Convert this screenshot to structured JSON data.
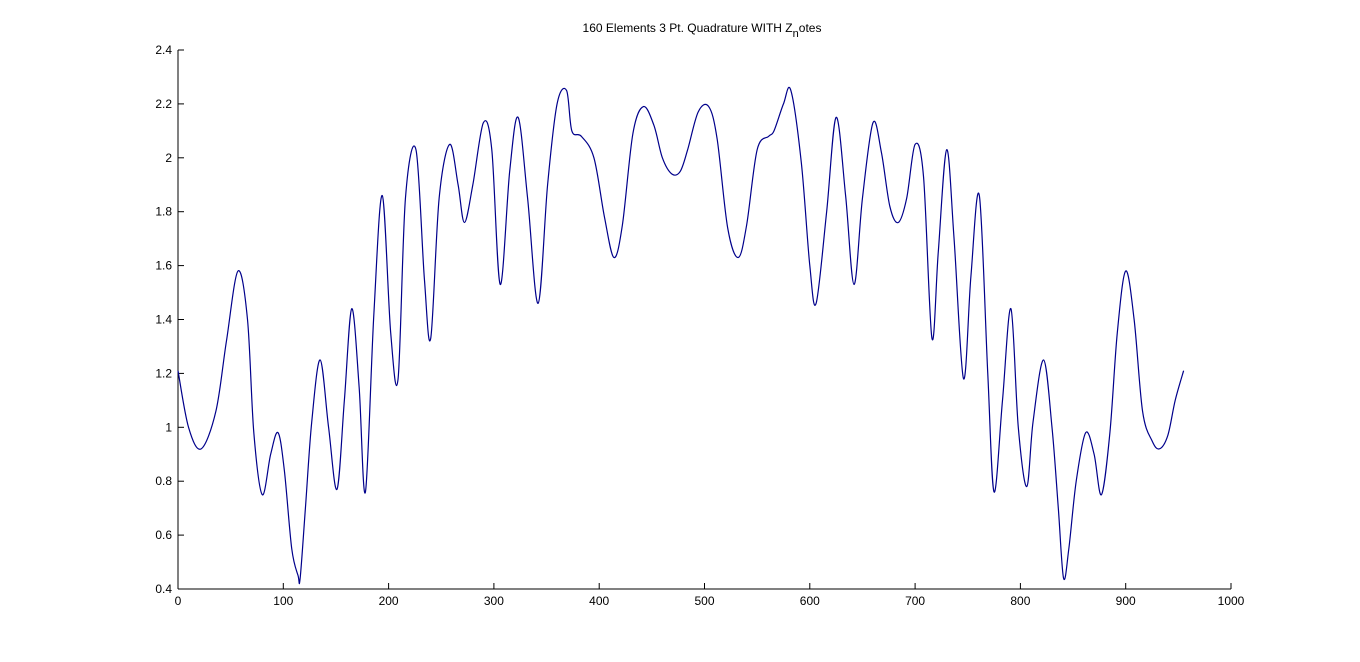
{
  "chart_data": {
    "type": "line",
    "title": "160 Elements 3 Pt. Quadrature WITH Z",
    "title_subscript": "n",
    "title_suffix": "otes",
    "xlabel": "",
    "ylabel": "",
    "xlim": [
      0,
      1000
    ],
    "ylim": [
      0.4,
      2.4
    ],
    "xticks": [
      0,
      100,
      200,
      300,
      400,
      500,
      600,
      700,
      800,
      900,
      1000
    ],
    "yticks": [
      0.4,
      0.6,
      0.8,
      1,
      1.2,
      1.4,
      1.6,
      1.8,
      2,
      2.2,
      2.4
    ],
    "xtick_labels": [
      "0",
      "100",
      "200",
      "300",
      "400",
      "500",
      "600",
      "700",
      "800",
      "900",
      "1000"
    ],
    "ytick_labels": [
      "0.4",
      "0.6",
      "0.8",
      "1",
      "1.2",
      "1.4",
      "1.6",
      "1.8",
      "2",
      "2.2",
      "2.4"
    ],
    "grid": false,
    "line_color": "#00008b",
    "series": [
      {
        "x": [
          0,
          10,
          22,
          36,
          46,
          57,
          66,
          72,
          80,
          88,
          95,
          101,
          108,
          114,
          116,
          121,
          127,
          135,
          143,
          151,
          158,
          165,
          172,
          178,
          186,
          194,
          202,
          209,
          216,
          226,
          234,
          240,
          248,
          258,
          266,
          272,
          280,
          290,
          298,
          306,
          315,
          323,
          332,
          342,
          351,
          360,
          369,
          374,
          383,
          395,
          405,
          414,
          422,
          432,
          442,
          452,
          460,
          469,
          477,
          484,
          494,
          504,
          512,
          522,
          532,
          540,
          550,
          561,
          566,
          575,
          582,
          592,
          600,
          606,
          616,
          625,
          634,
          642,
          650,
          660,
          668,
          676,
          684,
          692,
          700,
          708,
          716,
          722,
          730,
          737,
          746,
          753,
          761,
          769,
          775,
          783,
          791,
          798,
          806,
          812,
          822,
          830,
          836,
          841,
          846,
          853,
          862,
          870,
          877,
          885,
          892,
          900,
          908,
          916,
          925,
          932,
          940,
          947,
          955
        ],
        "y": [
          1.21,
          1.0,
          0.92,
          1.06,
          1.32,
          1.58,
          1.4,
          0.98,
          0.75,
          0.9,
          0.98,
          0.84,
          0.55,
          0.45,
          0.44,
          0.7,
          1.02,
          1.25,
          1.0,
          0.77,
          1.1,
          1.44,
          1.15,
          0.76,
          1.42,
          1.86,
          1.35,
          1.18,
          1.85,
          2.03,
          1.55,
          1.33,
          1.85,
          2.05,
          1.9,
          1.76,
          1.9,
          2.13,
          2.03,
          1.53,
          1.95,
          2.15,
          1.85,
          1.46,
          1.9,
          2.2,
          2.25,
          2.1,
          2.08,
          2.0,
          1.78,
          1.63,
          1.75,
          2.09,
          2.19,
          2.12,
          2.0,
          1.94,
          1.95,
          2.03,
          2.17,
          2.19,
          2.07,
          1.74,
          1.63,
          1.75,
          2.03,
          2.08,
          2.1,
          2.2,
          2.25,
          1.98,
          1.6,
          1.46,
          1.8,
          2.15,
          1.86,
          1.53,
          1.85,
          2.13,
          2.02,
          1.82,
          1.76,
          1.85,
          2.05,
          1.93,
          1.33,
          1.65,
          2.03,
          1.7,
          1.18,
          1.56,
          1.86,
          1.2,
          0.76,
          1.1,
          1.44,
          1.0,
          0.78,
          1.02,
          1.25,
          1.0,
          0.7,
          0.44,
          0.55,
          0.8,
          0.98,
          0.9,
          0.75,
          0.98,
          1.35,
          1.58,
          1.4,
          1.06,
          0.95,
          0.92,
          0.97,
          1.1,
          1.21
        ]
      }
    ]
  }
}
